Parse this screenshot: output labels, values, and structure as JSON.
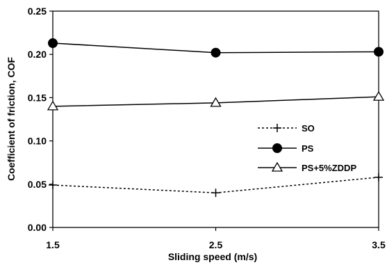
{
  "chart_data": {
    "type": "line",
    "xlabel": "Sliding speed (m/s)",
    "ylabel": "Coefficient of friction, COF",
    "xlim": [
      1.5,
      3.5
    ],
    "ylim": [
      0.0,
      0.25
    ],
    "x_ticks": [
      "1.5",
      "2.5",
      "3.5"
    ],
    "y_ticks": [
      "0.00",
      "0.05",
      "0.10",
      "0.15",
      "0.20",
      "0.25"
    ],
    "grid": false,
    "legend_position": "right",
    "series": [
      {
        "name": "SO",
        "marker": "plus",
        "line_style": "dotted",
        "x": [
          1.5,
          2.5,
          3.5
        ],
        "values": [
          0.049,
          0.04,
          0.058
        ]
      },
      {
        "name": "PS",
        "marker": "filled-circle",
        "line_style": "solid",
        "x": [
          1.5,
          2.5,
          3.5
        ],
        "values": [
          0.213,
          0.202,
          0.203
        ]
      },
      {
        "name": "PS+5%ZDDP",
        "marker": "open-triangle",
        "line_style": "solid",
        "x": [
          1.5,
          2.5,
          3.5
        ],
        "values": [
          0.14,
          0.144,
          0.151
        ]
      }
    ]
  }
}
